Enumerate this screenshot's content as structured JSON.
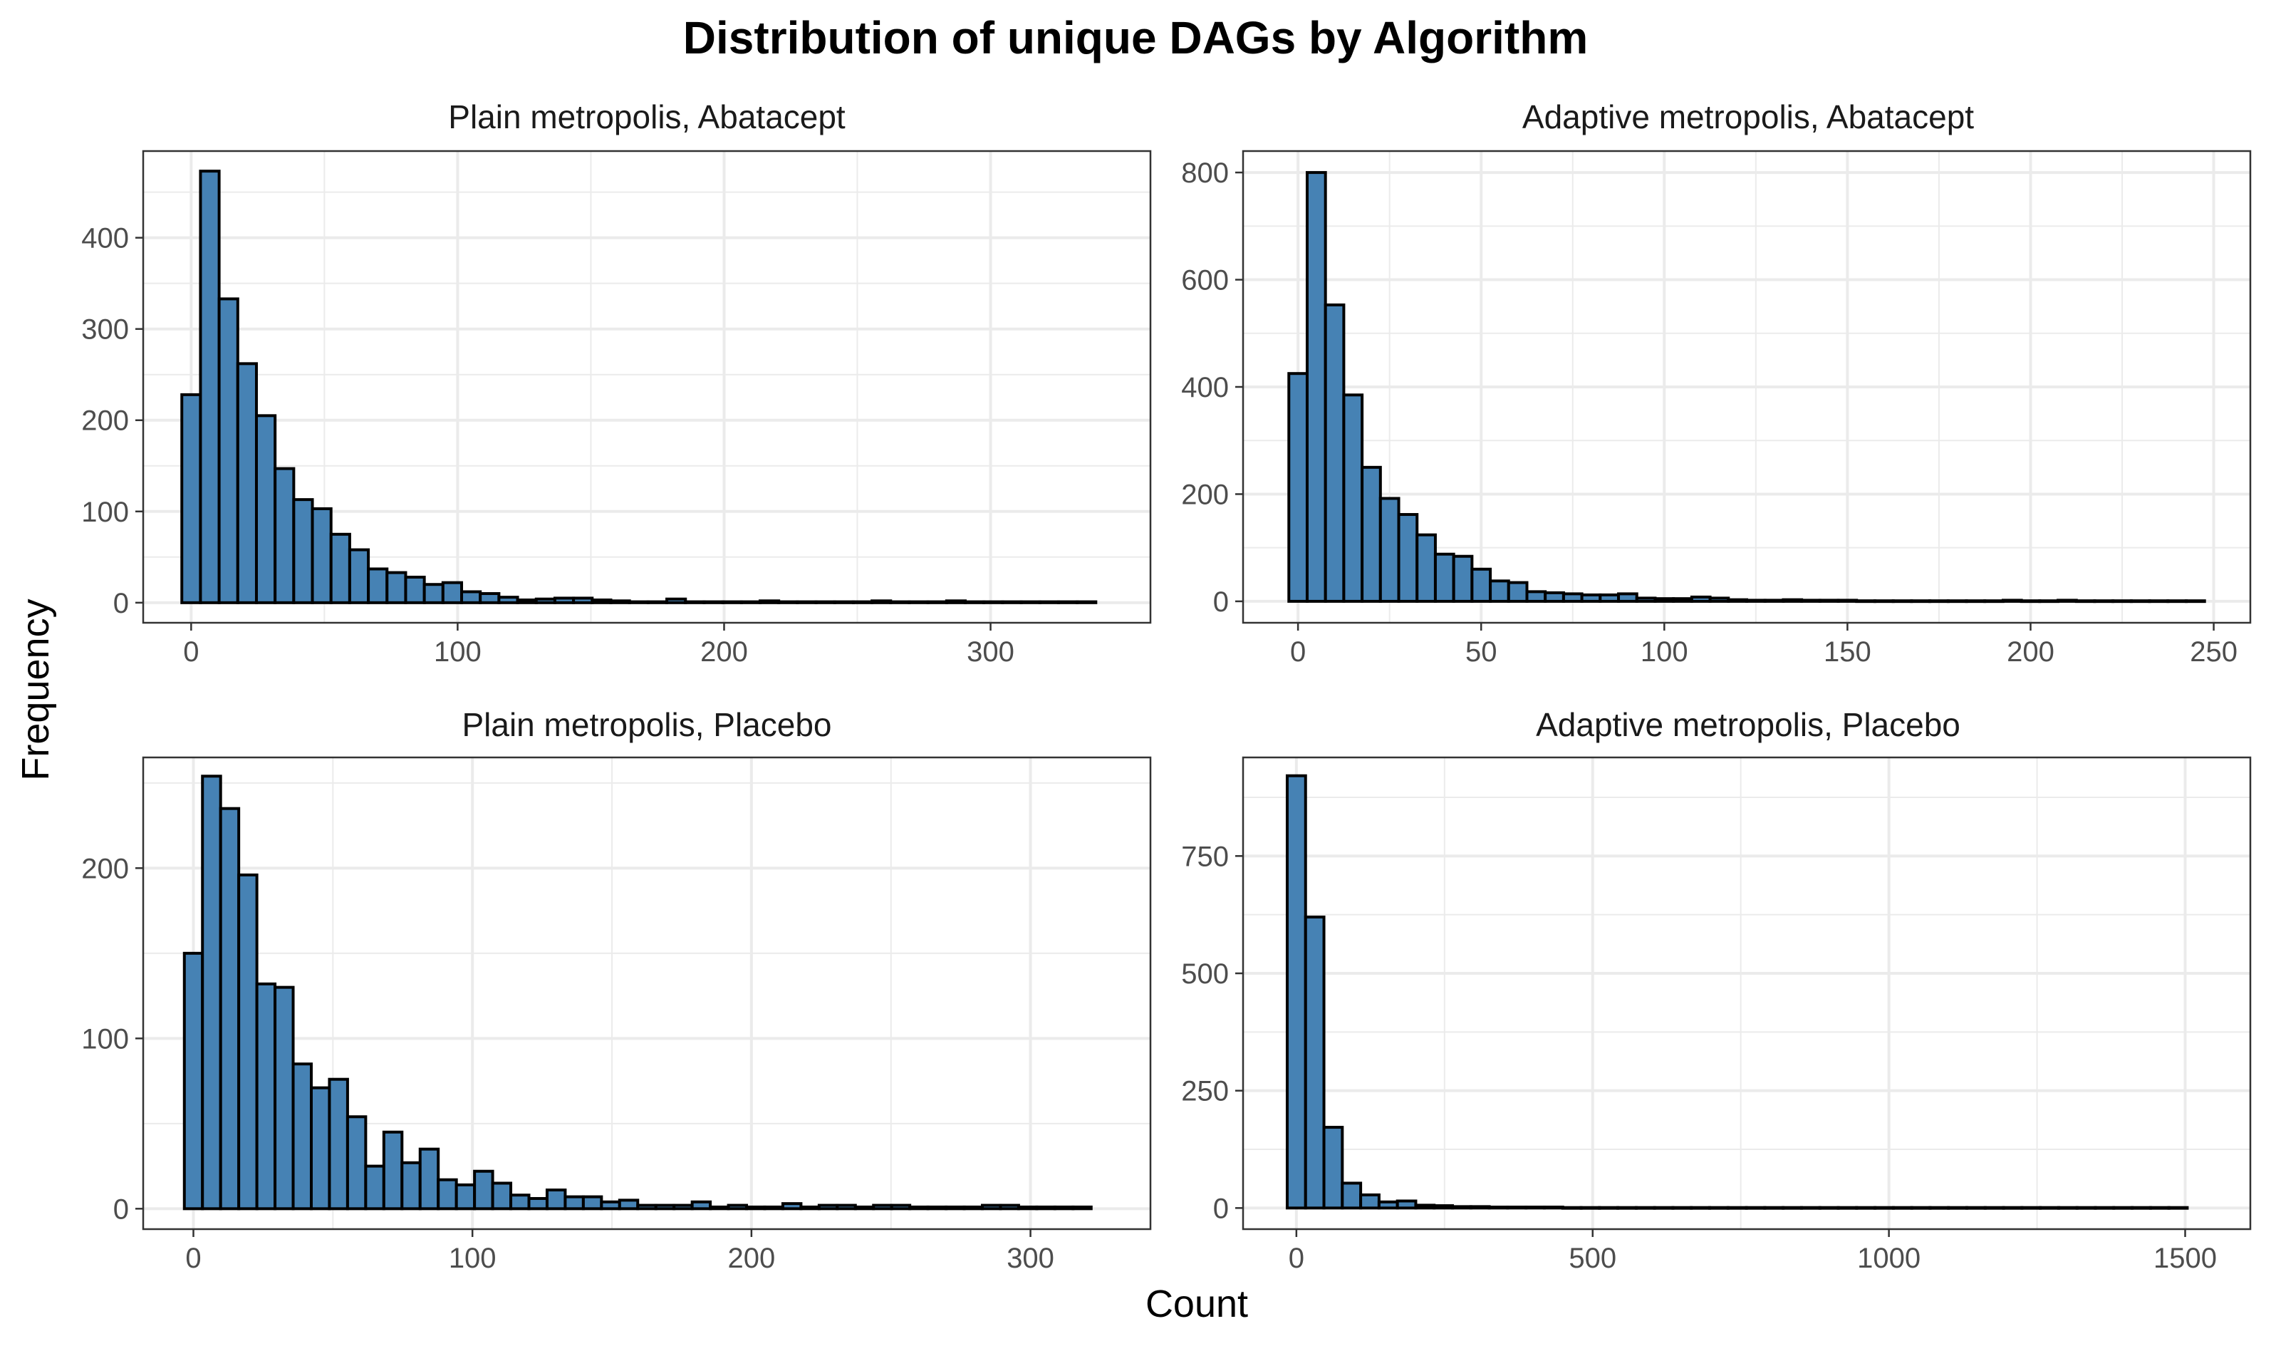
{
  "title": "Distribution of unique DAGs by Algorithm",
  "xlabel": "Count",
  "ylabel": "Frequency",
  "colors": {
    "bar_fill": "#4682b4",
    "bar_outline": "#000000",
    "grid": "#ebebeb",
    "panel_border": "#333333"
  },
  "chart_data": [
    {
      "type": "bar",
      "panel": "top-left",
      "title": "Plain metropolis, Abatacept",
      "bin_width": 7,
      "xlim": [
        -18,
        360
      ],
      "ylim": [
        -22,
        495
      ],
      "x_ticks": [
        0,
        100,
        200,
        300
      ],
      "y_ticks": [
        0,
        100,
        200,
        300,
        400
      ],
      "x": [
        0,
        7,
        14,
        21,
        28,
        35,
        42,
        49,
        56,
        63,
        70,
        77,
        84,
        91,
        98,
        105,
        112,
        119,
        126,
        133,
        140,
        147,
        154,
        161,
        168,
        175,
        182,
        189,
        196,
        203,
        210,
        217,
        224,
        231,
        238,
        245,
        252,
        259,
        266,
        273,
        280,
        287,
        294,
        301,
        308,
        315,
        322,
        329,
        336
      ],
      "values": [
        228,
        473,
        333,
        262,
        205,
        147,
        113,
        103,
        75,
        58,
        37,
        33,
        28,
        20,
        22,
        12,
        10,
        6,
        3,
        4,
        5,
        5,
        3,
        2,
        1,
        1,
        4,
        1,
        1,
        1,
        1,
        2,
        1,
        1,
        1,
        1,
        1,
        2,
        1,
        1,
        1,
        2,
        1,
        1,
        1,
        1,
        1,
        1,
        1
      ]
    },
    {
      "type": "bar",
      "panel": "top-right",
      "title": "Adaptive metropolis, Abatacept",
      "bin_width": 5,
      "xlim": [
        -15,
        260
      ],
      "ylim": [
        -40,
        840
      ],
      "x_ticks": [
        0,
        50,
        100,
        150,
        200,
        250
      ],
      "y_ticks": [
        0,
        200,
        400,
        600,
        800
      ],
      "x": [
        0,
        5,
        10,
        15,
        20,
        25,
        30,
        35,
        40,
        45,
        50,
        55,
        60,
        65,
        70,
        75,
        80,
        85,
        90,
        95,
        100,
        105,
        110,
        115,
        120,
        125,
        130,
        135,
        140,
        145,
        150,
        155,
        160,
        165,
        170,
        175,
        180,
        185,
        190,
        195,
        200,
        205,
        210,
        215,
        220,
        225,
        230,
        235,
        240,
        245
      ],
      "values": [
        425,
        800,
        553,
        385,
        250,
        192,
        162,
        124,
        88,
        84,
        60,
        38,
        35,
        18,
        16,
        14,
        12,
        12,
        14,
        6,
        5,
        5,
        8,
        6,
        3,
        2,
        2,
        3,
        2,
        2,
        2,
        1,
        1,
        1,
        1,
        1,
        1,
        1,
        1,
        2,
        1,
        1,
        2,
        1,
        1,
        1,
        1,
        1,
        1,
        1
      ]
    },
    {
      "type": "bar",
      "panel": "bottom-left",
      "title": "Plain metropolis, Placebo",
      "bin_width": 6.5,
      "xlim": [
        -18,
        343
      ],
      "ylim": [
        -12,
        265
      ],
      "x_ticks": [
        0,
        100,
        200,
        300
      ],
      "y_ticks": [
        0,
        100,
        200
      ],
      "x": [
        0,
        6.5,
        13,
        19.5,
        26,
        32.5,
        39,
        45.5,
        52,
        58.5,
        65,
        71.5,
        78,
        84.5,
        91,
        97.5,
        104,
        110.5,
        117,
        123.5,
        130,
        136.5,
        143,
        149.5,
        156,
        162.5,
        169,
        175.5,
        182,
        188.5,
        195,
        201.5,
        208,
        214.5,
        221,
        227.5,
        234,
        240.5,
        247,
        253.5,
        260,
        266.5,
        273,
        279.5,
        286,
        292.5,
        299,
        305.5,
        312,
        318.5
      ],
      "values": [
        150,
        254,
        235,
        196,
        132,
        130,
        85,
        71,
        76,
        54,
        25,
        45,
        27,
        35,
        17,
        14,
        22,
        15,
        8,
        6,
        11,
        7,
        7,
        4,
        5,
        2,
        2,
        2,
        4,
        1,
        2,
        1,
        1,
        3,
        1,
        2,
        2,
        1,
        2,
        2,
        1,
        1,
        1,
        1,
        2,
        2,
        1,
        1,
        1,
        1
      ]
    },
    {
      "type": "bar",
      "panel": "bottom-right",
      "title": "Adaptive metropolis, Placebo",
      "bin_width": 31,
      "xlim": [
        -90,
        1610
      ],
      "ylim": [
        -45,
        960
      ],
      "x_ticks": [
        0,
        500,
        1000,
        1500
      ],
      "y_ticks": [
        0,
        250,
        500,
        750
      ],
      "x": [
        0,
        31,
        62,
        93,
        124,
        155,
        186,
        217,
        248,
        279,
        310,
        341,
        372,
        403,
        434,
        465,
        496,
        527,
        558,
        589,
        620,
        651,
        682,
        713,
        744,
        775,
        806,
        837,
        868,
        899,
        930,
        961,
        992,
        1023,
        1054,
        1085,
        1116,
        1147,
        1178,
        1209,
        1240,
        1271,
        1302,
        1333,
        1364,
        1395,
        1426,
        1457,
        1488
      ],
      "values": [
        921,
        620,
        172,
        53,
        28,
        13,
        15,
        6,
        5,
        3,
        3,
        2,
        2,
        2,
        2,
        1,
        1,
        1,
        1,
        1,
        1,
        1,
        1,
        1,
        1,
        1,
        1,
        1,
        1,
        1,
        1,
        1,
        1,
        1,
        1,
        1,
        1,
        1,
        1,
        1,
        1,
        1,
        1,
        1,
        1,
        1,
        1,
        1,
        1
      ]
    }
  ]
}
